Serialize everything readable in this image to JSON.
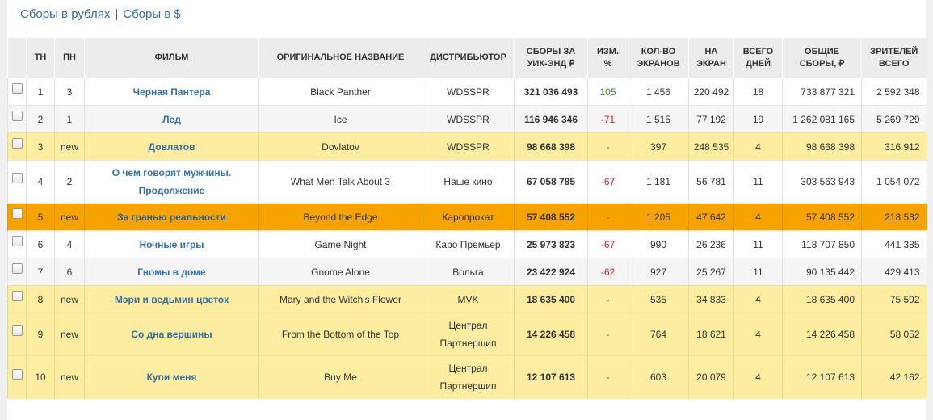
{
  "tabs": {
    "rub": "Сборы в рублях",
    "sep": "|",
    "usd": "Сборы в $"
  },
  "headers": {
    "tw": "ТН",
    "lw": "ПН",
    "film": "ФИЛЬМ",
    "orig": "ОРИГИНАЛЬНОЕ НАЗВАНИЕ",
    "dist": "ДИСТРИБЬЮТОР",
    "weekend_1": "СБОРЫ ЗА",
    "weekend_2": "УИК-ЭНД ₽",
    "change_1": "ИЗМ.",
    "change_2": "%",
    "screens_1": "КОЛ-ВО",
    "screens_2": "ЭКРАНОВ",
    "per_1": "НА",
    "per_2": "ЭКРАН",
    "days_1": "ВСЕГО",
    "days_2": "ДНЕЙ",
    "total_1": "ОБЩИЕ",
    "total_2": "СБОРЫ, ₽",
    "viewers_1": "ЗРИТЕЛЕЙ",
    "viewers_2": "ВСЕГО"
  },
  "rows": [
    {
      "tw": "1",
      "lw": "3",
      "film": "Черная Пантера",
      "orig": "Black Panther",
      "dist": "WDSSPR",
      "weekend": "321 036 493",
      "change": "105",
      "screens": "1 456",
      "per": "220 492",
      "days": "18",
      "total": "733 877 321",
      "viewers": "2 592 348"
    },
    {
      "tw": "2",
      "lw": "1",
      "film": "Лед",
      "orig": "Ice",
      "dist": "WDSSPR",
      "weekend": "116 946 346",
      "change": "-71",
      "screens": "1 515",
      "per": "77 192",
      "days": "19",
      "total": "1 262 081 165",
      "viewers": "5 269 729"
    },
    {
      "tw": "3",
      "lw": "new",
      "film": "Довлатов",
      "orig": "Dovlatov",
      "dist": "WDSSPR",
      "weekend": "98 668 398",
      "change": "-",
      "screens": "397",
      "per": "248 535",
      "days": "4",
      "total": "98 668 398",
      "viewers": "316 912"
    },
    {
      "tw": "4",
      "lw": "2",
      "film": "О чем говорят мужчины. Продолжение",
      "orig": "What Men Talk About 3",
      "dist": "Наше кино",
      "weekend": "67 058 785",
      "change": "-67",
      "screens": "1 181",
      "per": "56 781",
      "days": "11",
      "total": "303 563 943",
      "viewers": "1 054 072"
    },
    {
      "tw": "5",
      "lw": "new",
      "film": "За гранью реальности",
      "orig": "Beyond the Edge",
      "dist": "Каропрокат",
      "weekend": "57 408 552",
      "change": "-",
      "screens": "1 205",
      "per": "47 642",
      "days": "4",
      "total": "57 408 552",
      "viewers": "218 532"
    },
    {
      "tw": "6",
      "lw": "4",
      "film": "Ночные игры",
      "orig": "Game Night",
      "dist": "Каро Премьер",
      "weekend": "25 973 823",
      "change": "-67",
      "screens": "990",
      "per": "26 236",
      "days": "11",
      "total": "118 707 850",
      "viewers": "441 385"
    },
    {
      "tw": "7",
      "lw": "6",
      "film": "Гномы в доме",
      "orig": "Gnome Alone",
      "dist": "Вольга",
      "weekend": "23 422 924",
      "change": "-62",
      "screens": "927",
      "per": "25 267",
      "days": "11",
      "total": "90 135 442",
      "viewers": "429 413"
    },
    {
      "tw": "8",
      "lw": "new",
      "film": "Мэри и ведьмин цветок",
      "orig": "Mary and the Witch's Flower",
      "dist": "MVK",
      "weekend": "18 635 400",
      "change": "-",
      "screens": "535",
      "per": "34 833",
      "days": "4",
      "total": "18 635 400",
      "viewers": "75 592"
    },
    {
      "tw": "9",
      "lw": "new",
      "film": "Со дна вершины",
      "orig": "From the Bottom of the Top",
      "dist": "Централ Партнершип",
      "weekend": "14 226 458",
      "change": "-",
      "screens": "764",
      "per": "18 621",
      "days": "4",
      "total": "14 226 458",
      "viewers": "58 052"
    },
    {
      "tw": "10",
      "lw": "new",
      "film": "Купи меня",
      "orig": "Buy Me",
      "dist": "Централ Партнершип",
      "weekend": "12 107 613",
      "change": "-",
      "screens": "603",
      "per": "20 079",
      "days": "4",
      "total": "12 107 613",
      "viewers": "42 162"
    }
  ]
}
